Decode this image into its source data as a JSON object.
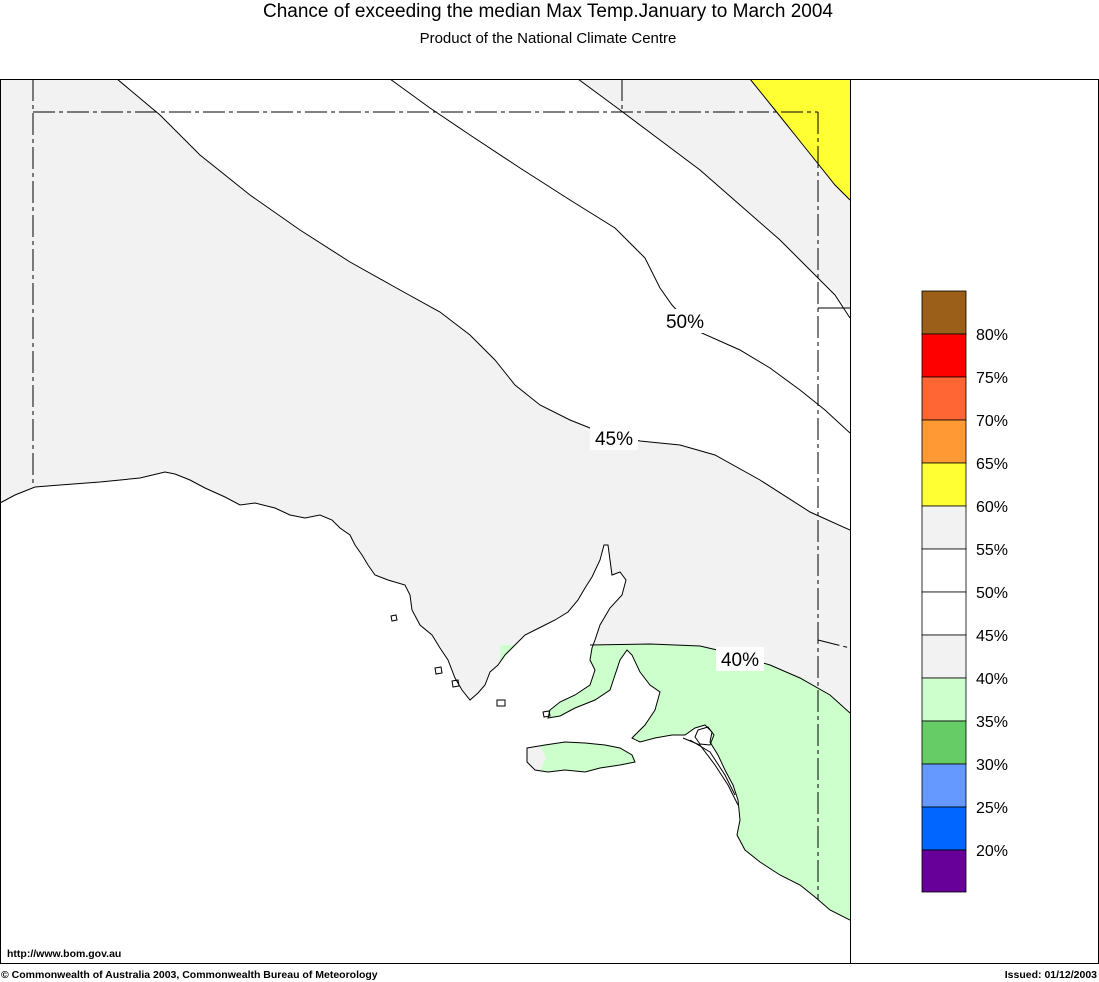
{
  "title": "Chance of exceeding the median Max Temp.January to March 2004",
  "subtitle": "Product of the National Climate Centre",
  "map": {
    "colors": {
      "ocean": "#FFFFFF",
      "grey": "#F2F2F2",
      "white": "#FFFFFF",
      "yellow": "#FFFF33",
      "green": "#CCFFCC"
    },
    "contour_labels": {
      "c50": "50%",
      "c45": "45%",
      "c40": "40%"
    }
  },
  "legend": {
    "colors": [
      "#9B5F1A",
      "#FF0000",
      "#FF6633",
      "#FF9933",
      "#FFFF33",
      "#F2F2F2",
      "#FFFFFF",
      "#FFFFFF",
      "#F2F2F2",
      "#CCFFCC",
      "#66CC66",
      "#6699FF",
      "#0066FF",
      "#660099"
    ],
    "labels": [
      "80%",
      "75%",
      "70%",
      "65%",
      "60%",
      "55%",
      "50%",
      "45%",
      "40%",
      "35%",
      "30%",
      "25%",
      "20%"
    ]
  },
  "footer": {
    "url": "http://www.bom.gov.au",
    "copyright": "© Commonwealth of Australia 2003, Commonwealth Bureau of Meteorology",
    "issued": "Issued: 01/12/2003"
  }
}
